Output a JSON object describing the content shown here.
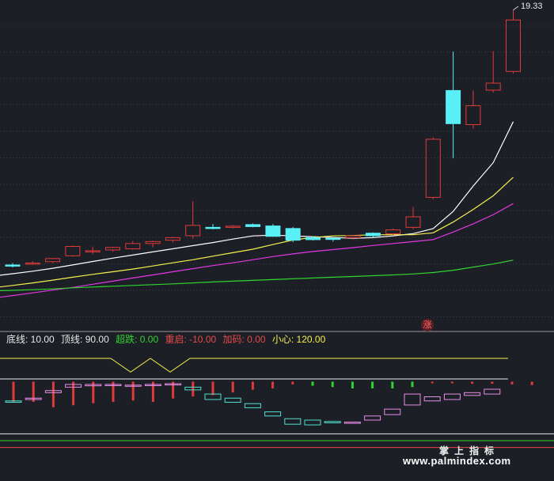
{
  "chart_data": [
    {
      "type": "candlestick",
      "max_label": "19.33",
      "up_color": "#e03a3a",
      "down_color": "#58f0f6",
      "candles": [
        {
          "o": 6.25,
          "h": 6.35,
          "l": 6.12,
          "c": 6.22
        },
        {
          "o": 6.32,
          "h": 6.45,
          "l": 6.28,
          "c": 6.35
        },
        {
          "o": 6.42,
          "h": 6.56,
          "l": 6.34,
          "c": 6.58
        },
        {
          "o": 6.72,
          "h": 7.25,
          "l": 6.68,
          "c": 7.2
        },
        {
          "o": 6.98,
          "h": 7.2,
          "l": 6.8,
          "c": 6.98
        },
        {
          "o": 7.02,
          "h": 7.18,
          "l": 6.92,
          "c": 7.15
        },
        {
          "o": 7.08,
          "h": 7.48,
          "l": 7.02,
          "c": 7.35
        },
        {
          "o": 7.35,
          "h": 7.5,
          "l": 7.15,
          "c": 7.45
        },
        {
          "o": 7.52,
          "h": 7.7,
          "l": 7.4,
          "c": 7.65
        },
        {
          "o": 7.75,
          "h": 9.52,
          "l": 7.6,
          "c": 8.28
        },
        {
          "o": 8.18,
          "h": 8.35,
          "l": 8.08,
          "c": 8.12
        },
        {
          "o": 8.18,
          "h": 8.3,
          "l": 8.12,
          "c": 8.24
        },
        {
          "o": 8.32,
          "h": 8.38,
          "l": 8.18,
          "c": 8.22
        },
        {
          "o": 8.25,
          "h": 8.35,
          "l": 7.7,
          "c": 7.72
        },
        {
          "o": 8.12,
          "h": 8.2,
          "l": 7.42,
          "c": 7.52
        },
        {
          "o": 7.65,
          "h": 7.72,
          "l": 7.5,
          "c": 7.55
        },
        {
          "o": 7.62,
          "h": 7.66,
          "l": 7.45,
          "c": 7.6
        },
        {
          "o": 7.65,
          "h": 7.78,
          "l": 7.55,
          "c": 7.75
        },
        {
          "o": 7.88,
          "h": 7.92,
          "l": 7.62,
          "c": 7.75
        },
        {
          "o": 7.85,
          "h": 8.12,
          "l": 7.78,
          "c": 8.05
        },
        {
          "o": 8.18,
          "h": 9.22,
          "l": 8.08,
          "c": 8.72
        },
        {
          "o": 9.72,
          "h": 12.8,
          "l": 9.62,
          "c": 12.7
        },
        {
          "o": 15.2,
          "h": 17.2,
          "l": 11.72,
          "c": 13.5
        },
        {
          "o": 13.45,
          "h": 15.2,
          "l": 13.25,
          "c": 14.42
        },
        {
          "o": 15.22,
          "h": 17.22,
          "l": 15.1,
          "c": 15.58
        },
        {
          "o": 16.18,
          "h": 19.33,
          "l": 16.08,
          "c": 18.82
        }
      ],
      "ma_lines": [
        {
          "color": "#ffffff",
          "values": [
            5.8,
            5.93,
            6.08,
            6.25,
            6.43,
            6.6,
            6.76,
            6.92,
            7.08,
            7.24,
            7.4,
            7.58,
            7.74,
            7.78,
            7.74,
            7.7,
            7.66,
            7.62,
            7.65,
            7.74,
            7.86,
            8.12,
            9.0,
            10.3,
            11.5,
            13.6
          ]
        },
        {
          "color": "#f4ef4c",
          "values": [
            5.2,
            5.33,
            5.47,
            5.62,
            5.77,
            5.9,
            6.04,
            6.2,
            6.36,
            6.52,
            6.7,
            6.88,
            7.06,
            7.3,
            7.53,
            7.66,
            7.74,
            7.76,
            7.8,
            7.8,
            7.8,
            7.9,
            8.45,
            9.1,
            9.8,
            10.75
          ]
        },
        {
          "color": "#e338e3",
          "values": [
            4.68,
            4.82,
            4.96,
            5.1,
            5.26,
            5.42,
            5.58,
            5.74,
            5.9,
            6.06,
            6.22,
            6.36,
            6.52,
            6.68,
            6.82,
            6.94,
            7.04,
            7.14,
            7.25,
            7.35,
            7.45,
            7.55,
            7.94,
            8.36,
            8.83,
            9.4
          ]
        },
        {
          "color": "#2fd42f",
          "values": [
            4.95,
            4.98,
            5.02,
            5.08,
            5.12,
            5.16,
            5.2,
            5.24,
            5.28,
            5.33,
            5.38,
            5.42,
            5.46,
            5.5,
            5.54,
            5.58,
            5.62,
            5.66,
            5.7,
            5.74,
            5.79,
            5.86,
            5.98,
            6.14,
            6.3,
            6.5
          ]
        }
      ]
    },
    {
      "type": "indicator",
      "legend": [
        {
          "text": "底线: 10.00",
          "color": "#e8e8e8"
        },
        {
          "text": "顶线: 90.00",
          "color": "#e8e8e8"
        },
        {
          "text": "超跌: 0.00",
          "color": "#2fd42f"
        },
        {
          "text": "重启: -10.00",
          "color": "#e84a4a"
        },
        {
          "text": "加码: 0.00",
          "color": "#e84a4a"
        },
        {
          "text": "小心: 120.00",
          "color": "#f4ef4c"
        }
      ],
      "yellow_line": [
        120,
        120,
        120,
        120,
        120,
        120,
        100,
        120,
        100,
        120,
        120,
        120,
        120,
        120,
        120,
        120,
        120,
        120,
        120,
        120,
        120,
        120,
        120,
        120,
        120,
        120,
        120
      ],
      "boxes": [
        {
          "o": 58,
          "c": 56
        },
        {
          "o": 60,
          "c": 62
        },
        {
          "o": 70,
          "c": 73
        },
        {
          "o": 78,
          "c": 82
        },
        {
          "o": 80,
          "c": 82
        },
        {
          "o": 81,
          "c": 82
        },
        {
          "o": 80,
          "c": 81
        },
        {
          "o": 81,
          "c": 82
        },
        {
          "o": 82,
          "c": 83
        },
        {
          "o": 78,
          "c": 74
        },
        {
          "o": 68,
          "c": 60
        },
        {
          "o": 62,
          "c": 56
        },
        {
          "o": 54,
          "c": 48
        },
        {
          "o": 42,
          "c": 36
        },
        {
          "o": 32,
          "c": 24
        },
        {
          "o": 30,
          "c": 23
        },
        {
          "o": 28,
          "c": 26
        },
        {
          "o": 27,
          "c": 27
        },
        {
          "o": 30,
          "c": 36
        },
        {
          "o": 38,
          "c": 46
        },
        {
          "o": 52,
          "c": 68
        },
        {
          "o": 58,
          "c": 64
        },
        {
          "o": 60,
          "c": 68
        },
        {
          "o": 66,
          "c": 70
        },
        {
          "o": 68,
          "c": 75
        }
      ],
      "bars": [
        {
          "v": -30,
          "color": "#e03a3a"
        },
        {
          "v": -30,
          "color": "#e03a3a"
        },
        {
          "v": -38,
          "color": "#e03a3a"
        },
        {
          "v": -35,
          "color": "#e03a3a"
        },
        {
          "v": -32,
          "color": "#e03a3a"
        },
        {
          "v": -30,
          "color": "#e03a3a"
        },
        {
          "v": -28,
          "color": "#e03a3a"
        },
        {
          "v": -30,
          "color": "#e03a3a"
        },
        {
          "v": -25,
          "color": "#e03a3a"
        },
        {
          "v": -22,
          "color": "#e03a3a"
        },
        {
          "v": -20,
          "color": "#e03a3a"
        },
        {
          "v": -16,
          "color": "#e03a3a"
        },
        {
          "v": -12,
          "color": "#e03a3a"
        },
        {
          "v": -10,
          "color": "#e03a3a"
        },
        {
          "v": -4,
          "color": "#e03a3a"
        },
        {
          "v": -6,
          "color": "#2fd42f"
        },
        {
          "v": -8,
          "color": "#2fd42f"
        },
        {
          "v": -10,
          "color": "#2fd42f"
        },
        {
          "v": -10,
          "color": "#2fd42f"
        },
        {
          "v": -10,
          "color": "#2fd42f"
        },
        {
          "v": -8,
          "color": "#2fd42f"
        },
        {
          "v": -2,
          "color": "#e03a3a"
        },
        {
          "v": -2,
          "color": "#e03a3a"
        },
        {
          "v": -3,
          "color": "#e03a3a"
        },
        {
          "v": -3,
          "color": "#e03a3a"
        },
        {
          "v": -4,
          "color": "#e03a3a"
        },
        {
          "v": -5,
          "color": "#e03a3a"
        }
      ]
    }
  ],
  "badge": "涨",
  "watermark_cn": "掌上指标",
  "watermark_url": "www.palmindex.com"
}
